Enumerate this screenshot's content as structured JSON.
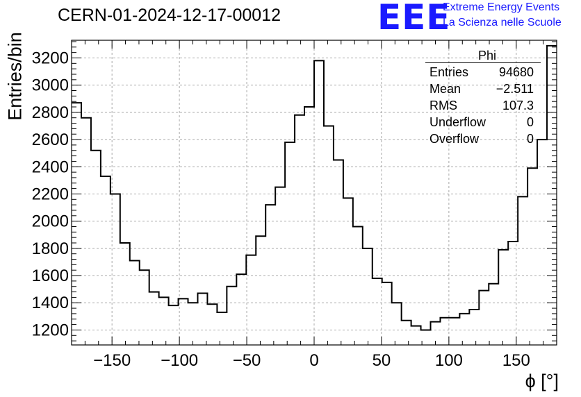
{
  "title": "CERN-01-2024-12-17-00012",
  "logo": {
    "mark": "EEE",
    "line1": "Extreme Energy Events",
    "line2": "La Scienza nelle Scuole"
  },
  "stats": {
    "name": "Phi",
    "rows": [
      {
        "key": "Entries",
        "value": "94680"
      },
      {
        "key": "Mean",
        "value": "−2.511"
      },
      {
        "key": "RMS",
        "value": "107.3"
      },
      {
        "key": "Underflow",
        "value": "0"
      },
      {
        "key": "Overflow",
        "value": "0"
      }
    ]
  },
  "chart_data": {
    "type": "bar",
    "style": "step-histogram",
    "title": "CERN-01-2024-12-17-00012",
    "xlabel": "ϕ [°]",
    "ylabel": "Entries/bin",
    "xlim": [
      -180,
      180
    ],
    "ylim": [
      1090,
      3330
    ],
    "bin_width": 7.2,
    "grid": true,
    "x_ticks": [
      -150,
      -100,
      -50,
      0,
      50,
      100,
      150
    ],
    "x_tick_labels": [
      "−150",
      "−100",
      "−50",
      "0",
      "50",
      "100",
      "150"
    ],
    "y_ticks": [
      1200,
      1400,
      1600,
      1800,
      2000,
      2200,
      2400,
      2600,
      2800,
      3000,
      3200
    ],
    "y_tick_labels": [
      "1200",
      "1400",
      "1600",
      "1800",
      "2000",
      "2200",
      "2400",
      "2600",
      "2800",
      "3000",
      "3200"
    ],
    "values": [
      2870,
      2760,
      2520,
      2330,
      2200,
      1840,
      1710,
      1640,
      1480,
      1440,
      1380,
      1430,
      1400,
      1470,
      1390,
      1330,
      1520,
      1610,
      1750,
      1890,
      2120,
      2250,
      2580,
      2780,
      2840,
      3180,
      2700,
      2450,
      2170,
      1960,
      1800,
      1580,
      1550,
      1400,
      1270,
      1230,
      1200,
      1260,
      1290,
      1290,
      1320,
      1350,
      1490,
      1540,
      1790,
      1850,
      2180,
      2390,
      2600,
      3290
    ]
  }
}
